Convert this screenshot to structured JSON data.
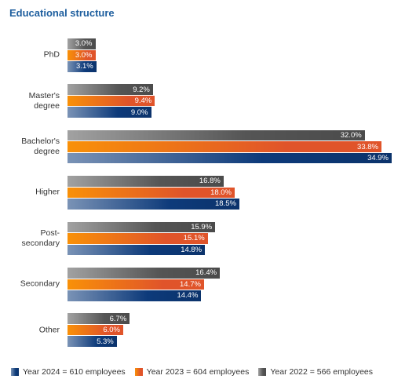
{
  "chart_data": {
    "type": "bar",
    "orientation": "horizontal",
    "title": "Educational structure",
    "categories": [
      "PhD",
      "Master's degree",
      "Bachelor's degree",
      "Higher",
      "Post-secondary",
      "Secondary",
      "Other"
    ],
    "series": [
      {
        "name": "Year 2022 = 566 employees",
        "color": "#555555",
        "values": [
          3.0,
          9.2,
          32.0,
          16.8,
          15.9,
          16.4,
          6.7
        ],
        "value_labels": [
          "3.0%",
          "9.2%",
          "32.0%",
          "16.8%",
          "15.9%",
          "16.4%",
          "6.7%"
        ]
      },
      {
        "name": "Year 2023 = 604 employees",
        "color": "#e0542a",
        "values": [
          3.0,
          9.4,
          33.8,
          18.0,
          15.1,
          14.7,
          6.0
        ],
        "value_labels": [
          "3.0%",
          "9.4%",
          "33.8%",
          "18.0%",
          "15.1%",
          "14.7%",
          "6.0%"
        ]
      },
      {
        "name": "Year 2024 = 610 employees",
        "color": "#0d3a7a",
        "values": [
          3.1,
          9.0,
          34.9,
          18.5,
          14.8,
          14.4,
          5.3
        ],
        "value_labels": [
          "3.1%",
          "9.0%",
          "34.9%",
          "18.5%",
          "14.8%",
          "14.4%",
          "5.3%"
        ]
      }
    ],
    "legend_order": [
      2,
      1,
      0
    ]
  }
}
